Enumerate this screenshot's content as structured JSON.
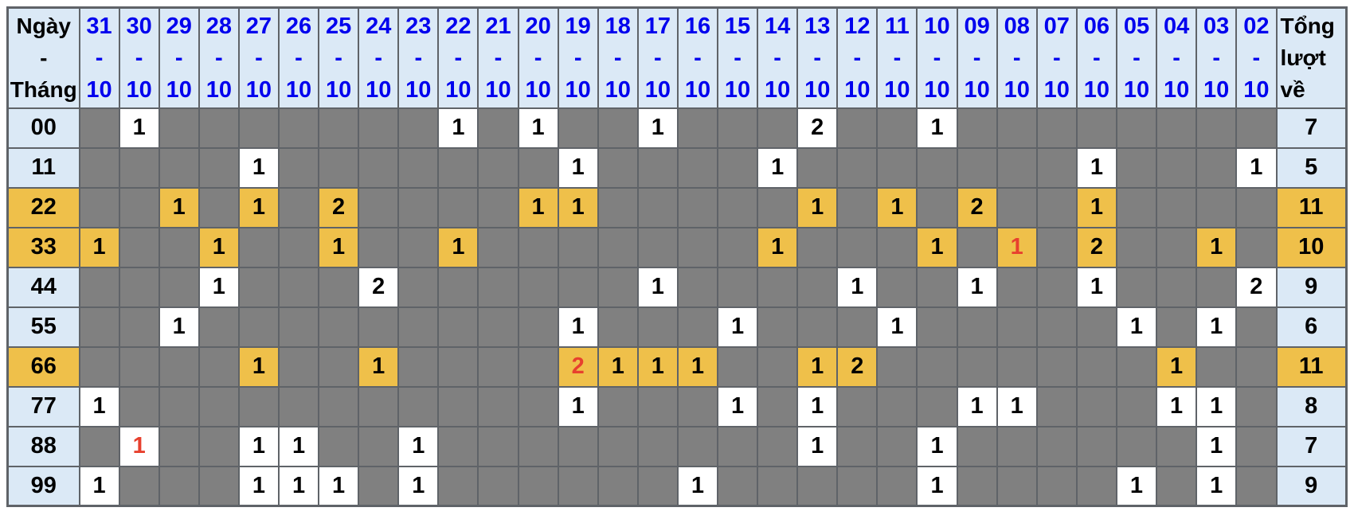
{
  "colors": {
    "header_bg": "#dbe9f6",
    "header_text": "#0000ee",
    "empty_cell": "#808080",
    "value_cell": "#ffffff",
    "highlight": "#efc04a",
    "red_text": "#e7402e",
    "border": "#5f6368"
  },
  "table": {
    "corner_header_lines": [
      "Ngày",
      "-",
      "Tháng"
    ],
    "total_header_lines": [
      "Tổng",
      "lượt",
      "về"
    ],
    "month": "10",
    "separator": "-",
    "days": [
      "31",
      "30",
      "29",
      "28",
      "27",
      "26",
      "25",
      "24",
      "23",
      "22",
      "21",
      "20",
      "19",
      "18",
      "17",
      "16",
      "15",
      "14",
      "13",
      "12",
      "11",
      "10",
      "09",
      "08",
      "07",
      "06",
      "05",
      "04",
      "03",
      "02"
    ],
    "rows": [
      {
        "label": "00",
        "highlight": false,
        "total": "7",
        "values": {
          "30": "1",
          "22": "1",
          "20": "1",
          "17": "1",
          "13": "2",
          "10": "1"
        },
        "red": []
      },
      {
        "label": "11",
        "highlight": false,
        "total": "5",
        "values": {
          "27": "1",
          "19": "1",
          "14": "1",
          "06": "1",
          "02": "1"
        },
        "red": []
      },
      {
        "label": "22",
        "highlight": true,
        "total": "11",
        "values": {
          "29": "1",
          "27": "1",
          "25": "2",
          "20": "1",
          "19": "1",
          "13": "1",
          "11": "1",
          "09": "2",
          "06": "1"
        },
        "red": []
      },
      {
        "label": "33",
        "highlight": true,
        "total": "10",
        "values": {
          "31": "1",
          "28": "1",
          "25": "1",
          "22": "1",
          "14": "1",
          "10": "1",
          "08": "1",
          "06": "2",
          "03": "1"
        },
        "red": [
          "08"
        ]
      },
      {
        "label": "44",
        "highlight": false,
        "total": "9",
        "values": {
          "28": "1",
          "24": "2",
          "17": "1",
          "12": "1",
          "09": "1",
          "06": "1",
          "02": "2"
        },
        "red": []
      },
      {
        "label": "55",
        "highlight": false,
        "total": "6",
        "values": {
          "29": "1",
          "19": "1",
          "15": "1",
          "11": "1",
          "05": "1",
          "03": "1"
        },
        "red": []
      },
      {
        "label": "66",
        "highlight": true,
        "total": "11",
        "values": {
          "27": "1",
          "24": "1",
          "19": "2",
          "18": "1",
          "17": "1",
          "16": "1",
          "13": "1",
          "12": "2",
          "04": "1"
        },
        "red": [
          "19"
        ]
      },
      {
        "label": "77",
        "highlight": false,
        "total": "8",
        "values": {
          "31": "1",
          "19": "1",
          "15": "1",
          "13": "1",
          "09": "1",
          "08": "1",
          "04": "1",
          "03": "1"
        },
        "red": []
      },
      {
        "label": "88",
        "highlight": false,
        "total": "7",
        "values": {
          "30": "1",
          "27": "1",
          "26": "1",
          "23": "1",
          "13": "1",
          "10": "1",
          "03": "1"
        },
        "red": [
          "30"
        ]
      },
      {
        "label": "99",
        "highlight": false,
        "total": "9",
        "values": {
          "31": "1",
          "27": "1",
          "26": "1",
          "25": "1",
          "23": "1",
          "16": "1",
          "10": "1",
          "05": "1",
          "03": "1"
        },
        "red": []
      }
    ]
  }
}
